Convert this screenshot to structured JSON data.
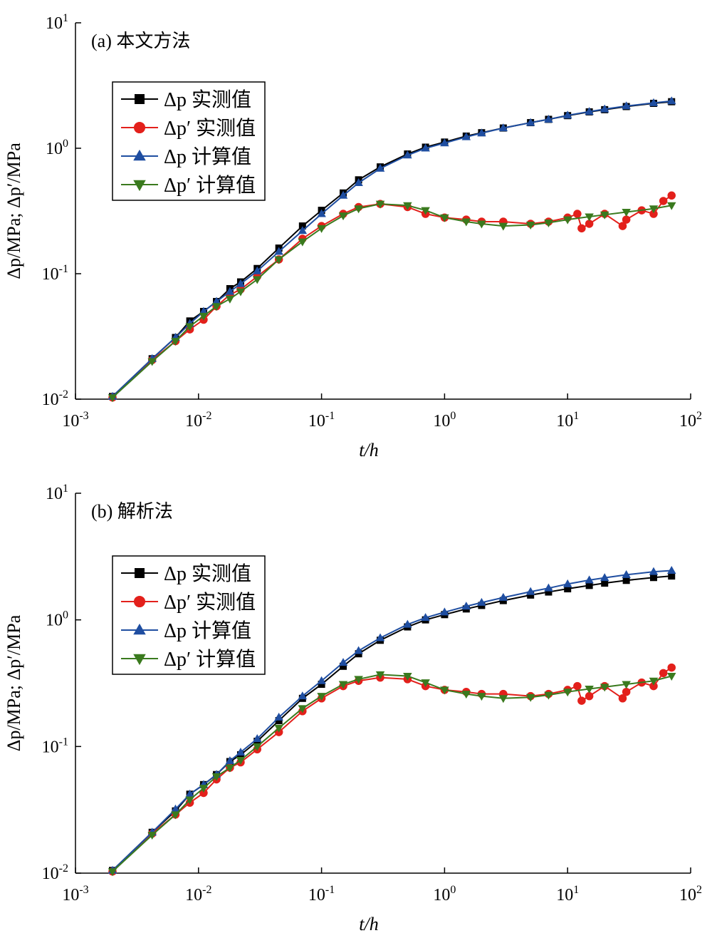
{
  "chart_data": [
    {
      "type": "scatter",
      "title": "(a) 本文方法",
      "xlabel": "t/h",
      "ylabel": "Δp/MPa; Δp′/MPa",
      "xscale": "log",
      "yscale": "log",
      "xlim": [
        0.001,
        100
      ],
      "ylim": [
        0.01,
        10
      ],
      "xticks": [
        "10^-3",
        "10^-2",
        "10^-1",
        "10^0",
        "10^1",
        "10^2"
      ],
      "yticks": [
        "10^-2",
        "10^-1",
        "10^0",
        "10^1"
      ],
      "legend_position": "upper-left",
      "series": [
        {
          "name": "Δp 实测值",
          "color": "#000000",
          "marker": "square",
          "x": [
            0.002,
            0.0042,
            0.0065,
            0.0085,
            0.011,
            0.014,
            0.018,
            0.022,
            0.03,
            0.045,
            0.07,
            0.1,
            0.15,
            0.2,
            0.3,
            0.5,
            0.7,
            1,
            1.5,
            2,
            3,
            5,
            7,
            10,
            15,
            20,
            30,
            50,
            70
          ],
          "y": [
            0.0105,
            0.021,
            0.031,
            0.042,
            0.05,
            0.06,
            0.076,
            0.086,
            0.11,
            0.16,
            0.24,
            0.32,
            0.44,
            0.56,
            0.71,
            0.9,
            1.02,
            1.12,
            1.25,
            1.33,
            1.45,
            1.6,
            1.7,
            1.82,
            1.95,
            2.03,
            2.15,
            2.28,
            2.35
          ]
        },
        {
          "name": "Δp′ 实测值",
          "color": "#e3201b",
          "marker": "circle",
          "x": [
            0.002,
            0.0042,
            0.0065,
            0.0085,
            0.011,
            0.014,
            0.018,
            0.022,
            0.03,
            0.045,
            0.07,
            0.1,
            0.15,
            0.2,
            0.3,
            0.5,
            0.7,
            1,
            1.5,
            2,
            3,
            5,
            7,
            10,
            12,
            13,
            15,
            20,
            28,
            30,
            40,
            50,
            60,
            70
          ],
          "y": [
            0.0103,
            0.0205,
            0.029,
            0.036,
            0.043,
            0.055,
            0.068,
            0.075,
            0.095,
            0.13,
            0.19,
            0.24,
            0.3,
            0.34,
            0.36,
            0.34,
            0.3,
            0.28,
            0.27,
            0.26,
            0.26,
            0.25,
            0.26,
            0.28,
            0.3,
            0.23,
            0.25,
            0.3,
            0.24,
            0.27,
            0.32,
            0.3,
            0.38,
            0.42
          ]
        },
        {
          "name": "Δp 计算值",
          "color": "#1f4ea1",
          "marker": "triangle-up",
          "x": [
            0.002,
            0.0042,
            0.0065,
            0.0085,
            0.011,
            0.014,
            0.018,
            0.022,
            0.03,
            0.045,
            0.07,
            0.1,
            0.15,
            0.2,
            0.3,
            0.5,
            0.7,
            1,
            1.5,
            2,
            3,
            5,
            7,
            10,
            15,
            20,
            30,
            50,
            70
          ],
          "y": [
            0.0105,
            0.021,
            0.031,
            0.04,
            0.05,
            0.06,
            0.072,
            0.083,
            0.105,
            0.15,
            0.22,
            0.3,
            0.42,
            0.53,
            0.69,
            0.88,
            1.0,
            1.1,
            1.23,
            1.32,
            1.45,
            1.6,
            1.7,
            1.83,
            1.96,
            2.05,
            2.17,
            2.3,
            2.38
          ]
        },
        {
          "name": "Δp′ 计算值",
          "color": "#3a7a1e",
          "marker": "triangle-down",
          "x": [
            0.002,
            0.0042,
            0.0065,
            0.0085,
            0.011,
            0.014,
            0.018,
            0.022,
            0.03,
            0.045,
            0.07,
            0.1,
            0.15,
            0.2,
            0.3,
            0.5,
            0.7,
            1,
            1.5,
            2,
            3,
            5,
            7,
            10,
            15,
            20,
            30,
            50,
            70
          ],
          "y": [
            0.0103,
            0.02,
            0.029,
            0.038,
            0.046,
            0.055,
            0.063,
            0.072,
            0.09,
            0.13,
            0.18,
            0.23,
            0.29,
            0.33,
            0.36,
            0.35,
            0.32,
            0.28,
            0.26,
            0.25,
            0.24,
            0.245,
            0.255,
            0.27,
            0.285,
            0.295,
            0.31,
            0.33,
            0.35
          ]
        }
      ]
    },
    {
      "type": "scatter",
      "title": "(b) 解析法",
      "xlabel": "t/h",
      "ylabel": "Δp/MPa; Δp′/MPa",
      "xscale": "log",
      "yscale": "log",
      "xlim": [
        0.001,
        100
      ],
      "ylim": [
        0.01,
        10
      ],
      "xticks": [
        "10^-3",
        "10^-2",
        "10^-1",
        "10^0",
        "10^1",
        "10^2"
      ],
      "yticks": [
        "10^-2",
        "10^-1",
        "10^0",
        "10^1"
      ],
      "legend_position": "upper-left",
      "series": [
        {
          "name": "Δp 实测值",
          "color": "#000000",
          "marker": "square",
          "x": [
            0.002,
            0.0042,
            0.0065,
            0.0085,
            0.011,
            0.014,
            0.018,
            0.022,
            0.03,
            0.045,
            0.07,
            0.1,
            0.15,
            0.2,
            0.3,
            0.5,
            0.7,
            1,
            1.5,
            2,
            3,
            5,
            7,
            10,
            15,
            20,
            30,
            50,
            70
          ],
          "y": [
            0.0105,
            0.021,
            0.031,
            0.042,
            0.05,
            0.06,
            0.076,
            0.086,
            0.11,
            0.16,
            0.24,
            0.31,
            0.43,
            0.54,
            0.69,
            0.88,
            1.0,
            1.1,
            1.22,
            1.3,
            1.42,
            1.57,
            1.66,
            1.76,
            1.87,
            1.95,
            2.05,
            2.16,
            2.22
          ]
        },
        {
          "name": "Δp′ 实测值",
          "color": "#e3201b",
          "marker": "circle",
          "x": [
            0.002,
            0.0042,
            0.0065,
            0.0085,
            0.011,
            0.014,
            0.018,
            0.022,
            0.03,
            0.045,
            0.07,
            0.1,
            0.15,
            0.2,
            0.3,
            0.5,
            0.7,
            1,
            1.5,
            2,
            3,
            5,
            7,
            10,
            12,
            13,
            15,
            20,
            28,
            30,
            40,
            50,
            60,
            70
          ],
          "y": [
            0.0103,
            0.0205,
            0.029,
            0.036,
            0.043,
            0.055,
            0.068,
            0.075,
            0.095,
            0.13,
            0.19,
            0.24,
            0.3,
            0.33,
            0.35,
            0.34,
            0.3,
            0.28,
            0.27,
            0.26,
            0.26,
            0.25,
            0.26,
            0.28,
            0.3,
            0.23,
            0.25,
            0.3,
            0.24,
            0.27,
            0.32,
            0.3,
            0.38,
            0.42
          ]
        },
        {
          "name": "Δp 计算值",
          "color": "#1f4ea1",
          "marker": "triangle-up",
          "x": [
            0.002,
            0.0042,
            0.0065,
            0.0085,
            0.011,
            0.014,
            0.018,
            0.022,
            0.03,
            0.045,
            0.07,
            0.1,
            0.15,
            0.2,
            0.3,
            0.5,
            0.7,
            1,
            1.5,
            2,
            3,
            5,
            7,
            10,
            15,
            20,
            30,
            50,
            70
          ],
          "y": [
            0.0105,
            0.021,
            0.032,
            0.042,
            0.05,
            0.06,
            0.077,
            0.09,
            0.115,
            0.17,
            0.25,
            0.33,
            0.46,
            0.57,
            0.72,
            0.92,
            1.04,
            1.15,
            1.28,
            1.37,
            1.5,
            1.67,
            1.78,
            1.92,
            2.06,
            2.15,
            2.27,
            2.4,
            2.45
          ]
        },
        {
          "name": "Δp′ 计算值",
          "color": "#3a7a1e",
          "marker": "triangle-down",
          "x": [
            0.002,
            0.0042,
            0.0065,
            0.0085,
            0.011,
            0.014,
            0.018,
            0.022,
            0.03,
            0.045,
            0.07,
            0.1,
            0.15,
            0.2,
            0.3,
            0.5,
            0.7,
            1,
            1.5,
            2,
            3,
            5,
            7,
            10,
            15,
            20,
            30,
            50,
            70
          ],
          "y": [
            0.0103,
            0.02,
            0.029,
            0.038,
            0.047,
            0.058,
            0.068,
            0.078,
            0.1,
            0.14,
            0.2,
            0.25,
            0.31,
            0.34,
            0.37,
            0.36,
            0.32,
            0.28,
            0.26,
            0.25,
            0.24,
            0.245,
            0.255,
            0.27,
            0.285,
            0.295,
            0.31,
            0.33,
            0.36
          ]
        }
      ]
    }
  ]
}
